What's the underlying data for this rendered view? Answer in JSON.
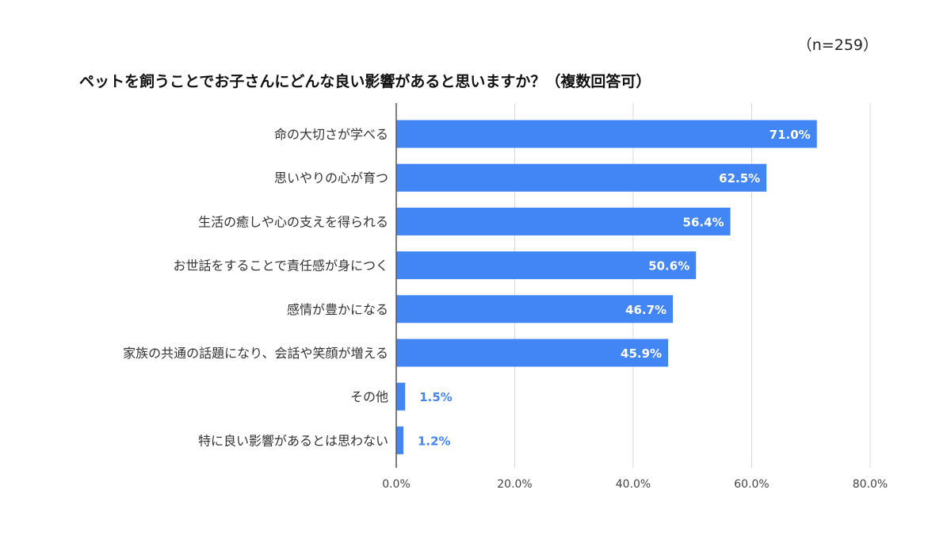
{
  "sample_size": "（n=259）",
  "chart_data": {
    "type": "bar",
    "orientation": "horizontal",
    "title": "ペットを飼うことでお子さんにどんな良い影響があると思いますか？（複数回答可）",
    "categories": [
      "命の大切さが学べる",
      "思いやりの心が育つ",
      "生活の癒しや心の支えを得られる",
      "お世話をすることで責任感が身につく",
      "感情が豊かになる",
      "家族の共通の話題になり、会話や笑顔が増える",
      "その他",
      "特に良い影響があるとは思わない"
    ],
    "values": [
      71.0,
      62.5,
      56.4,
      50.6,
      46.7,
      45.9,
      1.5,
      1.2
    ],
    "value_labels": [
      "71.0%",
      "62.5%",
      "56.4%",
      "50.6%",
      "46.7%",
      "45.9%",
      "1.5%",
      "1.2%"
    ],
    "xlim": [
      0,
      80
    ],
    "xticks": [
      0,
      20,
      40,
      60,
      80
    ],
    "xtick_labels": [
      "0.0%",
      "20.0%",
      "40.0%",
      "60.0%",
      "80.0%"
    ],
    "grid": true,
    "legend": "none",
    "colors": {
      "bar": "#4285F4",
      "label_inside": "#ffffff",
      "label_outside": "#4285F4",
      "grid": "#d9d9d9",
      "axis": "#555555"
    }
  }
}
